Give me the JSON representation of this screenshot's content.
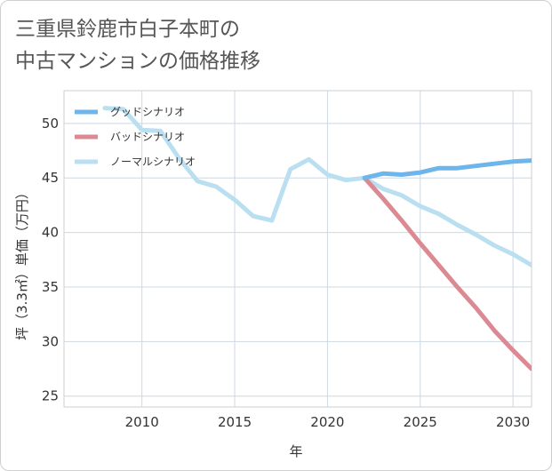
{
  "title_lines": [
    "三重県鈴鹿市白子本町の",
    "中古マンションの価格推移"
  ],
  "chart_data": {
    "type": "line",
    "title": "三重県鈴鹿市白子本町の中古マンションの価格推移",
    "xlabel": "年",
    "ylabel": "坪（3.3㎡）単価（万円）",
    "xlim": [
      2005.8,
      2031
    ],
    "ylim": [
      24,
      53
    ],
    "xticks": [
      2010,
      2015,
      2020,
      2025,
      2030
    ],
    "yticks": [
      25,
      30,
      35,
      40,
      45,
      50
    ],
    "grid": true,
    "legend_position": "top-left",
    "series": [
      {
        "name": "グッドシナリオ",
        "color": "#6cb6eb",
        "x": [
          2022,
          2023,
          2024,
          2025,
          2026,
          2027,
          2028,
          2029,
          2030,
          2031
        ],
        "y": [
          45.0,
          45.4,
          45.3,
          45.5,
          45.9,
          45.9,
          46.1,
          46.3,
          46.5,
          46.6
        ]
      },
      {
        "name": "バッドシナリオ",
        "color": "#db8a93",
        "x": [
          2022,
          2023,
          2024,
          2025,
          2026,
          2027,
          2028,
          2029,
          2030,
          2031
        ],
        "y": [
          45.0,
          43.1,
          41.1,
          39.0,
          37.0,
          35.0,
          33.1,
          31.0,
          29.2,
          27.5
        ]
      },
      {
        "name": "ノーマルシナリオ",
        "color": "#b9dff1",
        "x": [
          2008,
          2009,
          2010,
          2011,
          2012,
          2013,
          2014,
          2015,
          2016,
          2017,
          2018,
          2019,
          2020,
          2021,
          2022,
          2023,
          2024,
          2025,
          2026,
          2027,
          2028,
          2029,
          2030,
          2031
        ],
        "y": [
          51.4,
          51.3,
          49.4,
          49.3,
          46.8,
          44.7,
          44.2,
          43.0,
          41.5,
          41.1,
          45.8,
          46.7,
          45.3,
          44.8,
          45.0,
          44.0,
          43.4,
          42.4,
          41.7,
          40.7,
          39.8,
          38.8,
          38.0,
          37.0
        ]
      }
    ]
  }
}
